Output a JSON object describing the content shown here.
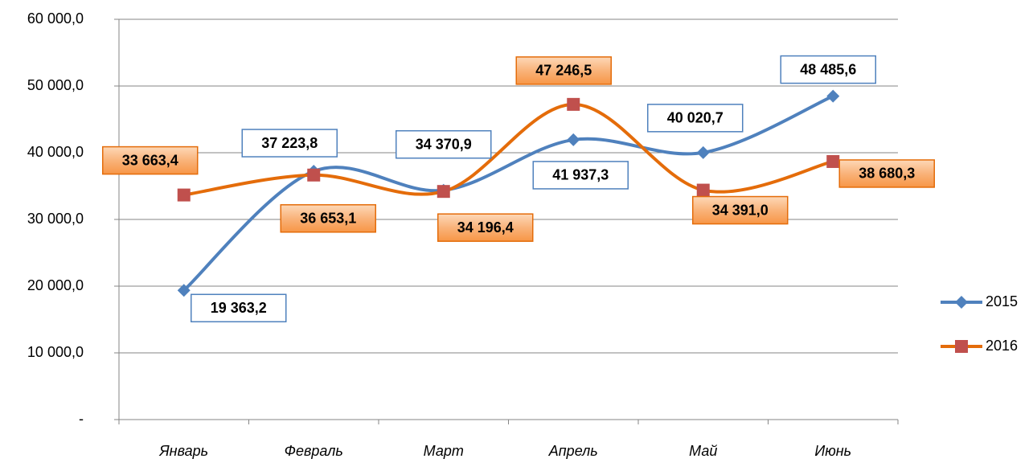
{
  "chart_data": {
    "type": "line",
    "categories": [
      "Январь",
      "Февраль",
      "Март",
      "Апрель",
      "Май",
      "Июнь"
    ],
    "series": [
      {
        "name": "2015",
        "color": "#4f81bd",
        "marker": "diamond",
        "label_style": "outline",
        "values": [
          19363.2,
          37223.8,
          34370.9,
          41937.3,
          40020.7,
          48485.6
        ],
        "value_labels": [
          "19 363,2",
          "37 223,8",
          "34 370,9",
          "41 937,3",
          "40 020,7",
          "48 485,6"
        ]
      },
      {
        "name": "2016",
        "color": "#e46c0a",
        "marker_color": "#c0504d",
        "marker": "square",
        "label_style": "filled",
        "values": [
          33663.4,
          36653.1,
          34196.4,
          47246.5,
          34391.0,
          38680.3
        ],
        "value_labels": [
          "33 663,4",
          "36 653,1",
          "34 196,4",
          "47 246,5",
          "34 391,0",
          "38 680,3"
        ]
      }
    ],
    "ylim": [
      0,
      60000
    ],
    "yticks": [
      {
        "value": 0,
        "label": "-"
      },
      {
        "value": 10000,
        "label": "10 000,0"
      },
      {
        "value": 20000,
        "label": "20 000,0"
      },
      {
        "value": 30000,
        "label": "30 000,0"
      },
      {
        "value": 40000,
        "label": "40 000,0"
      },
      {
        "value": 50000,
        "label": "50 000,0"
      },
      {
        "value": 60000,
        "label": "60 000,0"
      }
    ],
    "grid": true,
    "smooth": true,
    "legend": "right"
  }
}
